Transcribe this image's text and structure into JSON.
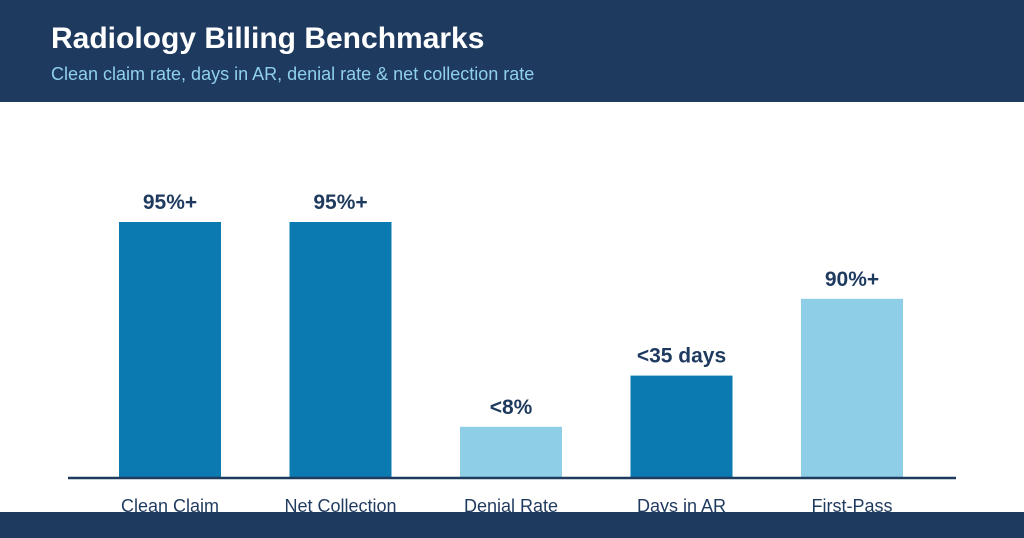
{
  "header": {
    "title": "Radiology Billing Benchmarks",
    "subtitle": "Clean claim rate, days in AR, denial rate & net collection rate"
  },
  "colors": {
    "header_bg": "#1f3a5f",
    "bar_dark": "#0b7ab0",
    "bar_light": "#8ecfe7",
    "text_dark": "#1f3a5f",
    "subtitle": "#8fd0ea"
  },
  "chart_data": {
    "type": "bar",
    "categories": [
      "Clean Claim",
      "Net Collection",
      "Denial Rate",
      "Days in AR",
      "First-Pass"
    ],
    "values": [
      100,
      100,
      20,
      40,
      70
    ],
    "value_labels": [
      "95%+",
      "95%+",
      "<8%",
      "<35 days",
      "90%+"
    ],
    "bar_colors": [
      "#0b7ab0",
      "#0b7ab0",
      "#8ecfe7",
      "#0b7ab0",
      "#8ecfe7"
    ],
    "title": "Radiology Billing Benchmarks",
    "subtitle": "Clean claim rate, days in AR, denial rate & net collection rate",
    "xlabel": "",
    "ylabel": "",
    "ylim": [
      0,
      100
    ],
    "grid": false,
    "legend": "none"
  }
}
